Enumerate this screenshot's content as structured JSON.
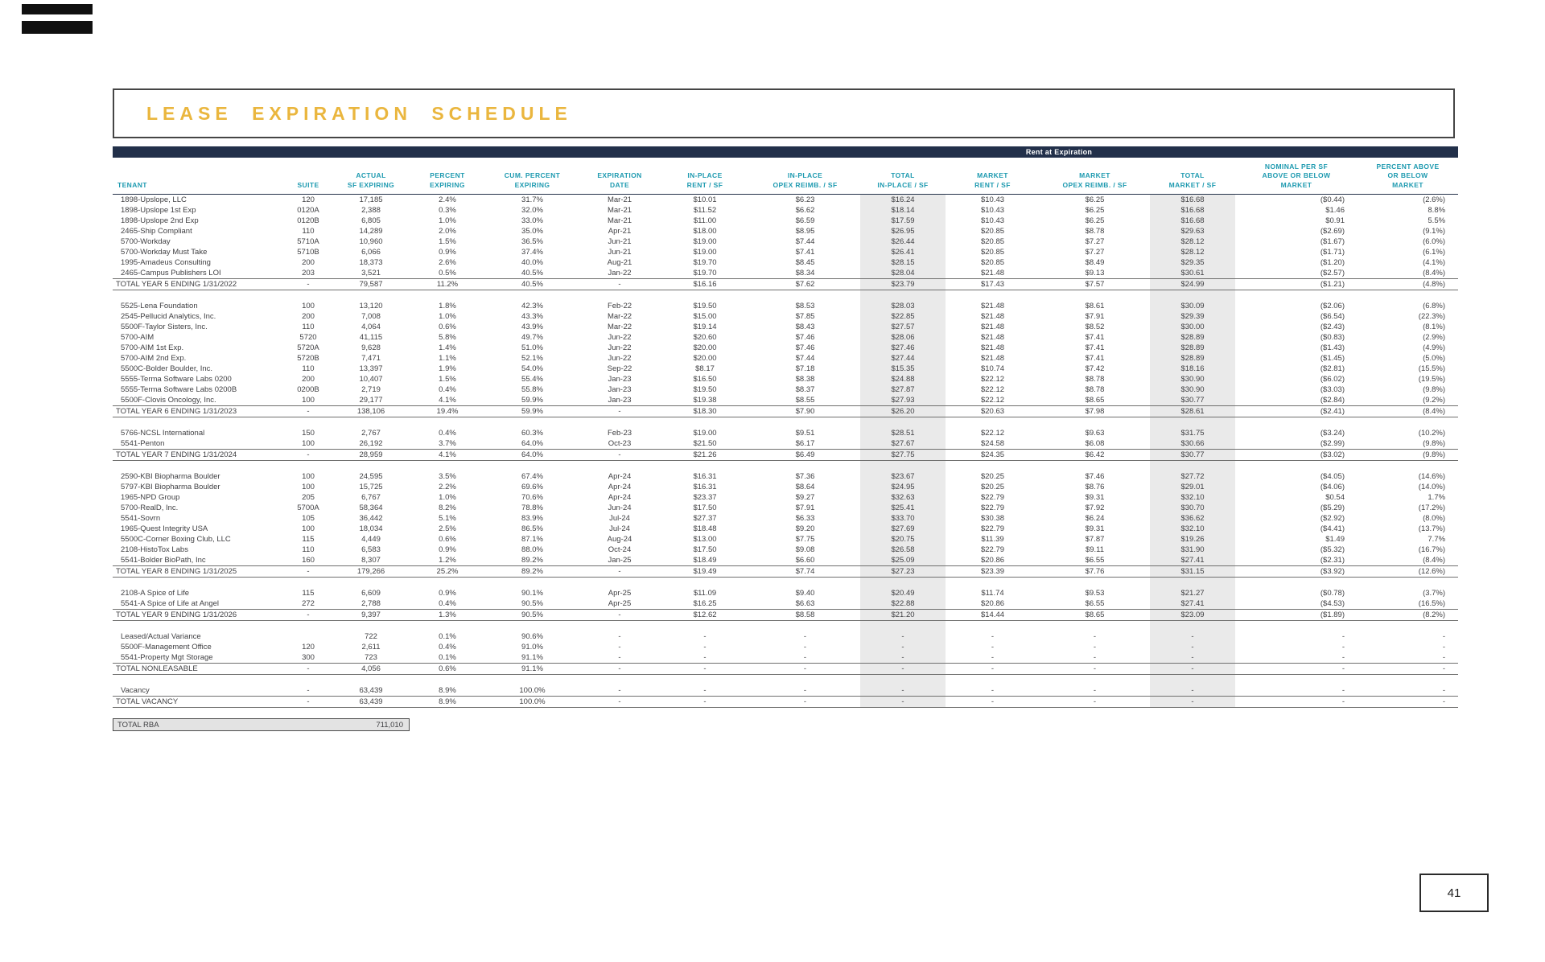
{
  "page": {
    "title": "LEASE EXPIRATION SCHEDULE",
    "page_number": "41",
    "colors": {
      "navy": "#22304A",
      "teal": "#1E9AB0",
      "gold": "#EAB63E",
      "shade": "#EAEAEA"
    }
  },
  "table": {
    "banner": "Rent at Expiration",
    "columns": [
      {
        "key": "tenant",
        "label": "TENANT"
      },
      {
        "key": "suite",
        "label": "SUITE"
      },
      {
        "key": "sf",
        "label": "ACTUAL\nSF EXPIRING"
      },
      {
        "key": "pct",
        "label": "PERCENT\nEXPIRING"
      },
      {
        "key": "cum",
        "label": "CUM. PERCENT\nEXPIRING"
      },
      {
        "key": "date",
        "label": "EXPIRATION\nDATE"
      },
      {
        "key": "ip_rent",
        "label": "IN-PLACE\nRENT / SF"
      },
      {
        "key": "ip_opex",
        "label": "IN-PLACE\nOPEX REIMB. / SF"
      },
      {
        "key": "ip_total",
        "label": "TOTAL\nIN-PLACE / SF"
      },
      {
        "key": "mkt_rent",
        "label": "MARKET\nRENT / SF"
      },
      {
        "key": "mkt_opex",
        "label": "MARKET\nOPEX REIMB. / SF"
      },
      {
        "key": "mkt_total",
        "label": "TOTAL\nMARKET / SF"
      },
      {
        "key": "nominal",
        "label": "NOMINAL PER SF\nABOVE OR BELOW\nMARKET"
      },
      {
        "key": "pct_mkt",
        "label": "PERCENT ABOVE\nOR BELOW\nMARKET"
      }
    ],
    "sections": [
      {
        "rows": [
          [
            "1898-Upslope, LLC",
            "120",
            "17,185",
            "2.4%",
            "31.7%",
            "Mar-21",
            "$10.01",
            "$6.23",
            "$16.24",
            "$10.43",
            "$6.25",
            "$16.68",
            "($0.44)",
            "(2.6%)"
          ],
          [
            "1898-Upslope 1st Exp",
            "0120A",
            "2,388",
            "0.3%",
            "32.0%",
            "Mar-21",
            "$11.52",
            "$6.62",
            "$18.14",
            "$10.43",
            "$6.25",
            "$16.68",
            "$1.46",
            "8.8%"
          ],
          [
            "1898-Upslope 2nd Exp",
            "0120B",
            "6,805",
            "1.0%",
            "33.0%",
            "Mar-21",
            "$11.00",
            "$6.59",
            "$17.59",
            "$10.43",
            "$6.25",
            "$16.68",
            "$0.91",
            "5.5%"
          ],
          [
            "2465-Ship Compliant",
            "110",
            "14,289",
            "2.0%",
            "35.0%",
            "Apr-21",
            "$18.00",
            "$8.95",
            "$26.95",
            "$20.85",
            "$8.78",
            "$29.63",
            "($2.69)",
            "(9.1%)"
          ],
          [
            "5700-Workday",
            "5710A",
            "10,960",
            "1.5%",
            "36.5%",
            "Jun-21",
            "$19.00",
            "$7.44",
            "$26.44",
            "$20.85",
            "$7.27",
            "$28.12",
            "($1.67)",
            "(6.0%)"
          ],
          [
            "5700-Workday Must Take",
            "5710B",
            "6,066",
            "0.9%",
            "37.4%",
            "Jun-21",
            "$19.00",
            "$7.41",
            "$26.41",
            "$20.85",
            "$7.27",
            "$28.12",
            "($1.71)",
            "(6.1%)"
          ],
          [
            "1995-Amadeus Consulting",
            "200",
            "18,373",
            "2.6%",
            "40.0%",
            "Aug-21",
            "$19.70",
            "$8.45",
            "$28.15",
            "$20.85",
            "$8.49",
            "$29.35",
            "($1.20)",
            "(4.1%)"
          ],
          [
            "2465-Campus Publishers LOI",
            "203",
            "3,521",
            "0.5%",
            "40.5%",
            "Jan-22",
            "$19.70",
            "$8.34",
            "$28.04",
            "$21.48",
            "$9.13",
            "$30.61",
            "($2.57)",
            "(8.4%)"
          ]
        ],
        "total": [
          "TOTAL YEAR 5 ENDING 1/31/2022",
          "-",
          "79,587",
          "11.2%",
          "40.5%",
          "-",
          "$16.16",
          "$7.62",
          "$23.79",
          "$17.43",
          "$7.57",
          "$24.99",
          "($1.21)",
          "(4.8%)"
        ]
      },
      {
        "rows": [
          [
            "5525-Lena Foundation",
            "100",
            "13,120",
            "1.8%",
            "42.3%",
            "Feb-22",
            "$19.50",
            "$8.53",
            "$28.03",
            "$21.48",
            "$8.61",
            "$30.09",
            "($2.06)",
            "(6.8%)"
          ],
          [
            "2545-Pellucid Analytics, Inc.",
            "200",
            "7,008",
            "1.0%",
            "43.3%",
            "Mar-22",
            "$15.00",
            "$7.85",
            "$22.85",
            "$21.48",
            "$7.91",
            "$29.39",
            "($6.54)",
            "(22.3%)"
          ],
          [
            "5500F-Taylor Sisters, Inc.",
            "110",
            "4,064",
            "0.6%",
            "43.9%",
            "Mar-22",
            "$19.14",
            "$8.43",
            "$27.57",
            "$21.48",
            "$8.52",
            "$30.00",
            "($2.43)",
            "(8.1%)"
          ],
          [
            "5700-AIM",
            "5720",
            "41,115",
            "5.8%",
            "49.7%",
            "Jun-22",
            "$20.60",
            "$7.46",
            "$28.06",
            "$21.48",
            "$7.41",
            "$28.89",
            "($0.83)",
            "(2.9%)"
          ],
          [
            "5700-AIM 1st Exp.",
            "5720A",
            "9,628",
            "1.4%",
            "51.0%",
            "Jun-22",
            "$20.00",
            "$7.46",
            "$27.46",
            "$21.48",
            "$7.41",
            "$28.89",
            "($1.43)",
            "(4.9%)"
          ],
          [
            "5700-AIM 2nd Exp.",
            "5720B",
            "7,471",
            "1.1%",
            "52.1%",
            "Jun-22",
            "$20.00",
            "$7.44",
            "$27.44",
            "$21.48",
            "$7.41",
            "$28.89",
            "($1.45)",
            "(5.0%)"
          ],
          [
            "5500C-Bolder Boulder, Inc.",
            "110",
            "13,397",
            "1.9%",
            "54.0%",
            "Sep-22",
            "$8.17",
            "$7.18",
            "$15.35",
            "$10.74",
            "$7.42",
            "$18.16",
            "($2.81)",
            "(15.5%)"
          ],
          [
            "5555-Terma Software Labs 0200",
            "200",
            "10,407",
            "1.5%",
            "55.4%",
            "Jan-23",
            "$16.50",
            "$8.38",
            "$24.88",
            "$22.12",
            "$8.78",
            "$30.90",
            "($6.02)",
            "(19.5%)"
          ],
          [
            "5555-Terma Software Labs 0200B",
            "0200B",
            "2,719",
            "0.4%",
            "55.8%",
            "Jan-23",
            "$19.50",
            "$8.37",
            "$27.87",
            "$22.12",
            "$8.78",
            "$30.90",
            "($3.03)",
            "(9.8%)"
          ],
          [
            "5500F-Clovis Oncology, Inc.",
            "100",
            "29,177",
            "4.1%",
            "59.9%",
            "Jan-23",
            "$19.38",
            "$8.55",
            "$27.93",
            "$22.12",
            "$8.65",
            "$30.77",
            "($2.84)",
            "(9.2%)"
          ]
        ],
        "total": [
          "TOTAL YEAR 6 ENDING 1/31/2023",
          "-",
          "138,106",
          "19.4%",
          "59.9%",
          "-",
          "$18.30",
          "$7.90",
          "$26.20",
          "$20.63",
          "$7.98",
          "$28.61",
          "($2.41)",
          "(8.4%)"
        ]
      },
      {
        "rows": [
          [
            "5766-NCSL International",
            "150",
            "2,767",
            "0.4%",
            "60.3%",
            "Feb-23",
            "$19.00",
            "$9.51",
            "$28.51",
            "$22.12",
            "$9.63",
            "$31.75",
            "($3.24)",
            "(10.2%)"
          ],
          [
            "5541-Penton",
            "100",
            "26,192",
            "3.7%",
            "64.0%",
            "Oct-23",
            "$21.50",
            "$6.17",
            "$27.67",
            "$24.58",
            "$6.08",
            "$30.66",
            "($2.99)",
            "(9.8%)"
          ]
        ],
        "total": [
          "TOTAL YEAR 7 ENDING 1/31/2024",
          "-",
          "28,959",
          "4.1%",
          "64.0%",
          "-",
          "$21.26",
          "$6.49",
          "$27.75",
          "$24.35",
          "$6.42",
          "$30.77",
          "($3.02)",
          "(9.8%)"
        ]
      },
      {
        "rows": [
          [
            "2590-KBI Biopharma Boulder",
            "100",
            "24,595",
            "3.5%",
            "67.4%",
            "Apr-24",
            "$16.31",
            "$7.36",
            "$23.67",
            "$20.25",
            "$7.46",
            "$27.72",
            "($4.05)",
            "(14.6%)"
          ],
          [
            "5797-KBI Biopharma Boulder",
            "100",
            "15,725",
            "2.2%",
            "69.6%",
            "Apr-24",
            "$16.31",
            "$8.64",
            "$24.95",
            "$20.25",
            "$8.76",
            "$29.01",
            "($4.06)",
            "(14.0%)"
          ],
          [
            "1965-NPD Group",
            "205",
            "6,767",
            "1.0%",
            "70.6%",
            "Apr-24",
            "$23.37",
            "$9.27",
            "$32.63",
            "$22.79",
            "$9.31",
            "$32.10",
            "$0.54",
            "1.7%"
          ],
          [
            "5700-RealD, Inc.",
            "5700A",
            "58,364",
            "8.2%",
            "78.8%",
            "Jun-24",
            "$17.50",
            "$7.91",
            "$25.41",
            "$22.79",
            "$7.92",
            "$30.70",
            "($5.29)",
            "(17.2%)"
          ],
          [
            "5541-Sovrn",
            "105",
            "36,442",
            "5.1%",
            "83.9%",
            "Jul-24",
            "$27.37",
            "$6.33",
            "$33.70",
            "$30.38",
            "$6.24",
            "$36.62",
            "($2.92)",
            "(8.0%)"
          ],
          [
            "1965-Quest Integrity USA",
            "100",
            "18,034",
            "2.5%",
            "86.5%",
            "Jul-24",
            "$18.48",
            "$9.20",
            "$27.69",
            "$22.79",
            "$9.31",
            "$32.10",
            "($4.41)",
            "(13.7%)"
          ],
          [
            "5500C-Corner Boxing Club, LLC",
            "115",
            "4,449",
            "0.6%",
            "87.1%",
            "Aug-24",
            "$13.00",
            "$7.75",
            "$20.75",
            "$11.39",
            "$7.87",
            "$19.26",
            "$1.49",
            "7.7%"
          ],
          [
            "2108-HistoTox Labs",
            "110",
            "6,583",
            "0.9%",
            "88.0%",
            "Oct-24",
            "$17.50",
            "$9.08",
            "$26.58",
            "$22.79",
            "$9.11",
            "$31.90",
            "($5.32)",
            "(16.7%)"
          ],
          [
            "5541-Bolder BioPath, Inc",
            "160",
            "8,307",
            "1.2%",
            "89.2%",
            "Jan-25",
            "$18.49",
            "$6.60",
            "$25.09",
            "$20.86",
            "$6.55",
            "$27.41",
            "($2.31)",
            "(8.4%)"
          ]
        ],
        "total": [
          "TOTAL YEAR 8 ENDING 1/31/2025",
          "-",
          "179,266",
          "25.2%",
          "89.2%",
          "-",
          "$19.49",
          "$7.74",
          "$27.23",
          "$23.39",
          "$7.76",
          "$31.15",
          "($3.92)",
          "(12.6%)"
        ]
      },
      {
        "rows": [
          [
            "2108-A Spice of Life",
            "115",
            "6,609",
            "0.9%",
            "90.1%",
            "Apr-25",
            "$11.09",
            "$9.40",
            "$20.49",
            "$11.74",
            "$9.53",
            "$21.27",
            "($0.78)",
            "(3.7%)"
          ],
          [
            "5541-A Spice of Life at Angel",
            "272",
            "2,788",
            "0.4%",
            "90.5%",
            "Apr-25",
            "$16.25",
            "$6.63",
            "$22.88",
            "$20.86",
            "$6.55",
            "$27.41",
            "($4.53)",
            "(16.5%)"
          ]
        ],
        "total": [
          "TOTAL YEAR 9 ENDING 1/31/2026",
          "-",
          "9,397",
          "1.3%",
          "90.5%",
          "-",
          "$12.62",
          "$8.58",
          "$21.20",
          "$14.44",
          "$8.65",
          "$23.09",
          "($1.89)",
          "(8.2%)"
        ]
      },
      {
        "rows": [
          [
            "Leased/Actual Variance",
            "",
            "722",
            "0.1%",
            "90.6%",
            "-",
            "-",
            "-",
            "-",
            "-",
            "-",
            "-",
            "-",
            "-"
          ],
          [
            "5500F-Management Office",
            "120",
            "2,611",
            "0.4%",
            "91.0%",
            "-",
            "-",
            "-",
            "-",
            "-",
            "-",
            "-",
            "-",
            "-"
          ],
          [
            "5541-Property Mgt Storage",
            "300",
            "723",
            "0.1%",
            "91.1%",
            "-",
            "-",
            "-",
            "-",
            "-",
            "-",
            "-",
            "-",
            "-"
          ]
        ],
        "total": [
          "TOTAL NONLEASABLE",
          "-",
          "4,056",
          "0.6%",
          "91.1%",
          "-",
          "-",
          "-",
          "-",
          "-",
          "-",
          "-",
          "-",
          "-"
        ]
      },
      {
        "rows": [
          [
            "Vacancy",
            "-",
            "63,439",
            "8.9%",
            "100.0%",
            "-",
            "-",
            "-",
            "-",
            "-",
            "-",
            "-",
            "-",
            "-"
          ]
        ],
        "total": [
          "TOTAL VACANCY",
          "-",
          "63,439",
          "8.9%",
          "100.0%",
          "-",
          "-",
          "-",
          "-",
          "-",
          "-",
          "-",
          "-",
          "-"
        ]
      }
    ],
    "total_rba": {
      "label": "TOTAL RBA",
      "value": "711,010"
    }
  }
}
